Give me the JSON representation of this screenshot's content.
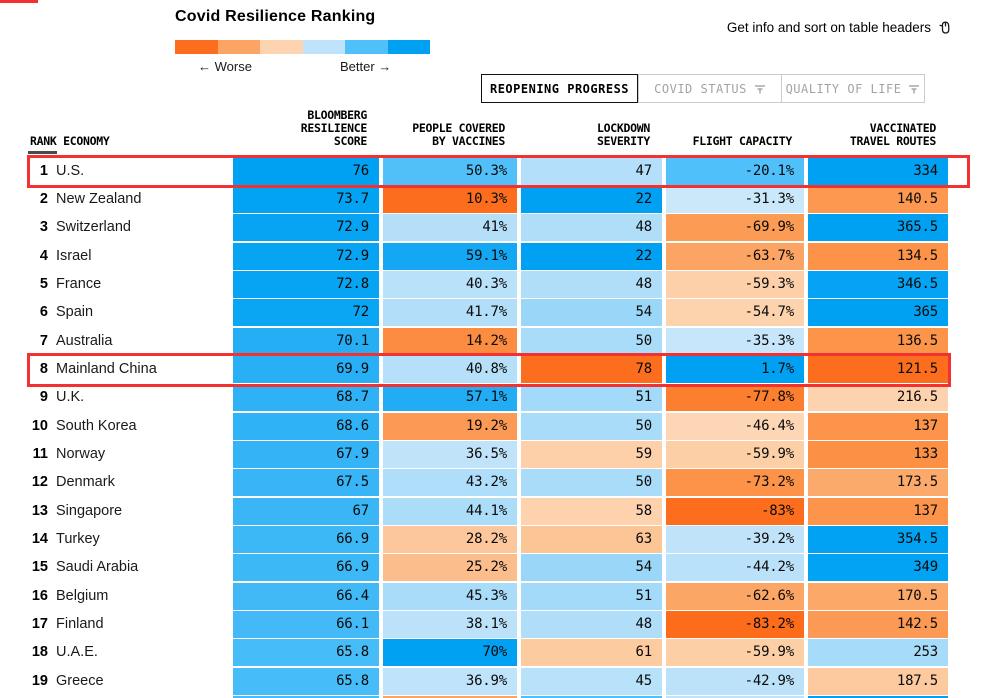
{
  "title": "Covid Resilience Ranking",
  "legend": {
    "worse_label": "← Worse",
    "better_label": "Better →",
    "palette": [
      "#fc6e1d",
      "#fca463",
      "#fdd3b0",
      "#bfe3fb",
      "#4fc0fa",
      "#00a1f2"
    ]
  },
  "hint": {
    "text": "Get info and sort on table headers",
    "icon": "mouse-cursor-icon"
  },
  "tabs": [
    {
      "label": "REOPENING PROGRESS",
      "active": true
    },
    {
      "label": "COVID STATUS",
      "active": false,
      "filter_icon": true
    },
    {
      "label": "QUALITY OF LIFE",
      "active": false,
      "filter_icon": true
    }
  ],
  "chart_data": {
    "type": "heatmap-table",
    "title": "Covid Resilience Ranking",
    "color_scale": {
      "low": "worse (orange)",
      "high": "better (blue)"
    },
    "headers": {
      "rank_economy": "RANK ECONOMY",
      "score": [
        "BLOOMBERG",
        "RESILIENCE",
        "SCORE"
      ],
      "vaccines": [
        "PEOPLE COVERED",
        "BY VACCINES"
      ],
      "lockdown": [
        "LOCKDOWN",
        "SEVERITY"
      ],
      "flight": [
        "FLIGHT CAPACITY"
      ],
      "routes": [
        "VACCINATED",
        "TRAVEL ROUTES"
      ]
    },
    "rows": [
      {
        "rank": "1",
        "economy": "U.S.",
        "highlight": true,
        "score": {
          "v": "76",
          "bg": "#00a1f2"
        },
        "vaccines": {
          "v": "50.3%",
          "bg": "#52c0f8"
        },
        "lockdown": {
          "v": "47",
          "bg": "#b3dffa"
        },
        "flight": {
          "v": "-20.1%",
          "bg": "#4fc0fa"
        },
        "routes": {
          "v": "334",
          "bg": "#00a1f2"
        }
      },
      {
        "rank": "2",
        "economy": "New Zealand",
        "highlight": false,
        "score": {
          "v": "73.7",
          "bg": "#03a3f3"
        },
        "vaccines": {
          "v": "10.3%",
          "bg": "#fc6e1d"
        },
        "lockdown": {
          "v": "22",
          "bg": "#00a1f2"
        },
        "flight": {
          "v": "-31.3%",
          "bg": "#cbe8fb"
        },
        "routes": {
          "v": "140.5",
          "bg": "#fc9850"
        }
      },
      {
        "rank": "3",
        "economy": "Switzerland",
        "highlight": false,
        "score": {
          "v": "72.9",
          "bg": "#06a4f3"
        },
        "vaccines": {
          "v": "41%",
          "bg": "#b5dff9"
        },
        "lockdown": {
          "v": "48",
          "bg": "#b0def9"
        },
        "flight": {
          "v": "-69.9%",
          "bg": "#fc9b54"
        },
        "routes": {
          "v": "365.5",
          "bg": "#00a1f2"
        }
      },
      {
        "rank": "4",
        "economy": "Israel",
        "highlight": false,
        "score": {
          "v": "72.9",
          "bg": "#06a4f3"
        },
        "vaccines": {
          "v": "59.1%",
          "bg": "#14a8f4"
        },
        "lockdown": {
          "v": "22",
          "bg": "#00a1f2"
        },
        "flight": {
          "v": "-63.7%",
          "bg": "#fca463"
        },
        "routes": {
          "v": "134.5",
          "bg": "#fc9348"
        }
      },
      {
        "rank": "5",
        "economy": "France",
        "highlight": false,
        "score": {
          "v": "72.8",
          "bg": "#07a4f3"
        },
        "vaccines": {
          "v": "40.3%",
          "bg": "#b8e1fa"
        },
        "lockdown": {
          "v": "48",
          "bg": "#b0def9"
        },
        "flight": {
          "v": "-59.3%",
          "bg": "#fdd0a9"
        },
        "routes": {
          "v": "346.5",
          "bg": "#04a3f3"
        }
      },
      {
        "rank": "6",
        "economy": "Spain",
        "highlight": false,
        "score": {
          "v": "72",
          "bg": "#0aa6f3"
        },
        "vaccines": {
          "v": "41.7%",
          "bg": "#b2def9"
        },
        "lockdown": {
          "v": "54",
          "bg": "#99d6f8"
        },
        "flight": {
          "v": "-54.7%",
          "bg": "#fdd3ae"
        },
        "routes": {
          "v": "365",
          "bg": "#00a1f2"
        }
      },
      {
        "rank": "7",
        "economy": "Australia",
        "highlight": false,
        "score": {
          "v": "70.1",
          "bg": "#26aef5"
        },
        "vaccines": {
          "v": "14.2%",
          "bg": "#fc8c42"
        },
        "lockdown": {
          "v": "50",
          "bg": "#a8dcf9"
        },
        "flight": {
          "v": "-35.3%",
          "bg": "#c7e6fb"
        },
        "routes": {
          "v": "136.5",
          "bg": "#fc944a"
        }
      },
      {
        "rank": "8",
        "economy": "Mainland China",
        "highlight": true,
        "score": {
          "v": "69.9",
          "bg": "#28aff5"
        },
        "vaccines": {
          "v": "40.8%",
          "bg": "#b6e0fa"
        },
        "lockdown": {
          "v": "78",
          "bg": "#fc6e1d"
        },
        "flight": {
          "v": "1.7%",
          "bg": "#00a1f2"
        },
        "routes": {
          "v": "121.5",
          "bg": "#fc6e1d"
        }
      },
      {
        "rank": "9",
        "economy": "U.K.",
        "highlight": false,
        "score": {
          "v": "68.7",
          "bg": "#2eb2f5"
        },
        "vaccines": {
          "v": "57.1%",
          "bg": "#22acf4"
        },
        "lockdown": {
          "v": "51",
          "bg": "#a4daf9"
        },
        "flight": {
          "v": "-77.8%",
          "bg": "#fc7f2f"
        },
        "routes": {
          "v": "216.5",
          "bg": "#fdd2ae"
        }
      },
      {
        "rank": "10",
        "economy": "South Korea",
        "highlight": false,
        "score": {
          "v": "68.6",
          "bg": "#2fb2f6"
        },
        "vaccines": {
          "v": "19.2%",
          "bg": "#fc9a55"
        },
        "lockdown": {
          "v": "50",
          "bg": "#a8dcf9"
        },
        "flight": {
          "v": "-46.4%",
          "bg": "#fdd6b5"
        },
        "routes": {
          "v": "137",
          "bg": "#fc954b"
        }
      },
      {
        "rank": "11",
        "economy": "Norway",
        "highlight": false,
        "score": {
          "v": "67.9",
          "bg": "#34b4f6"
        },
        "vaccines": {
          "v": "36.5%",
          "bg": "#c0e3fa"
        },
        "lockdown": {
          "v": "59",
          "bg": "#fdd0a9"
        },
        "flight": {
          "v": "-59.9%",
          "bg": "#fdcfa7"
        },
        "routes": {
          "v": "133",
          "bg": "#fc9146"
        }
      },
      {
        "rank": "12",
        "economy": "Denmark",
        "highlight": false,
        "score": {
          "v": "67.5",
          "bg": "#37b5f6"
        },
        "vaccines": {
          "v": "43.2%",
          "bg": "#aedef9"
        },
        "lockdown": {
          "v": "50",
          "bg": "#a8dcf9"
        },
        "flight": {
          "v": "-73.2%",
          "bg": "#fc9348"
        },
        "routes": {
          "v": "173.5",
          "bg": "#fcaa6c"
        }
      },
      {
        "rank": "13",
        "economy": "Singapore",
        "highlight": false,
        "score": {
          "v": "67",
          "bg": "#3ab6f6"
        },
        "vaccines": {
          "v": "44.1%",
          "bg": "#abddf9"
        },
        "lockdown": {
          "v": "58",
          "bg": "#fdd2ad"
        },
        "flight": {
          "v": "-83%",
          "bg": "#fc6e1d"
        },
        "routes": {
          "v": "137",
          "bg": "#fc954b"
        }
      },
      {
        "rank": "14",
        "economy": "Turkey",
        "highlight": false,
        "score": {
          "v": "66.9",
          "bg": "#3db8f7"
        },
        "vaccines": {
          "v": "28.2%",
          "bg": "#fcc79c"
        },
        "lockdown": {
          "v": "63",
          "bg": "#fcc596"
        },
        "flight": {
          "v": "-39.2%",
          "bg": "#c0e3fa"
        },
        "routes": {
          "v": "354.5",
          "bg": "#02a2f2"
        }
      },
      {
        "rank": "15",
        "economy": "Saudi Arabia",
        "highlight": false,
        "score": {
          "v": "66.9",
          "bg": "#3db8f7"
        },
        "vaccines": {
          "v": "25.2%",
          "bg": "#fcbd8d"
        },
        "lockdown": {
          "v": "54",
          "bg": "#99d6f8"
        },
        "flight": {
          "v": "-44.2%",
          "bg": "#bae1fa"
        },
        "routes": {
          "v": "349",
          "bg": "#03a3f3"
        }
      },
      {
        "rank": "16",
        "economy": "Belgium",
        "highlight": false,
        "score": {
          "v": "66.4",
          "bg": "#41b9f7"
        },
        "vaccines": {
          "v": "45.3%",
          "bg": "#a8dcf9"
        },
        "lockdown": {
          "v": "51",
          "bg": "#a4daf9"
        },
        "flight": {
          "v": "-62.6%",
          "bg": "#fca665"
        },
        "routes": {
          "v": "170.5",
          "bg": "#fca868"
        }
      },
      {
        "rank": "17",
        "economy": "Finland",
        "highlight": false,
        "score": {
          "v": "66.1",
          "bg": "#43baf7"
        },
        "vaccines": {
          "v": "38.1%",
          "bg": "#bce2fa"
        },
        "lockdown": {
          "v": "48",
          "bg": "#b0def9"
        },
        "flight": {
          "v": "-83.2%",
          "bg": "#fc6c1a"
        },
        "routes": {
          "v": "142.5",
          "bg": "#fc9954"
        }
      },
      {
        "rank": "18",
        "economy": "U.A.E.",
        "highlight": false,
        "score": {
          "v": "65.8",
          "bg": "#46bcf8"
        },
        "vaccines": {
          "v": "70%",
          "bg": "#00a1f2"
        },
        "lockdown": {
          "v": "61",
          "bg": "#fdcba0"
        },
        "flight": {
          "v": "-59.9%",
          "bg": "#fdcfa7"
        },
        "routes": {
          "v": "253",
          "bg": "#a6dcfa"
        }
      },
      {
        "rank": "19",
        "economy": "Greece",
        "highlight": false,
        "score": {
          "v": "65.8",
          "bg": "#46bcf8"
        },
        "vaccines": {
          "v": "36.9%",
          "bg": "#bfe3fa"
        },
        "lockdown": {
          "v": "45",
          "bg": "#b8e1fa"
        },
        "flight": {
          "v": "-42.9%",
          "bg": "#bce2fa"
        },
        "routes": {
          "v": "187.5",
          "bg": "#fdc99e"
        }
      }
    ],
    "partial_bottom_row_colors": {
      "score": "#46bcf8",
      "vaccines": "#fca463",
      "lockdown": "#4fc0fa",
      "flight": "#bfe3fb",
      "routes": "#00a1f2"
    }
  }
}
